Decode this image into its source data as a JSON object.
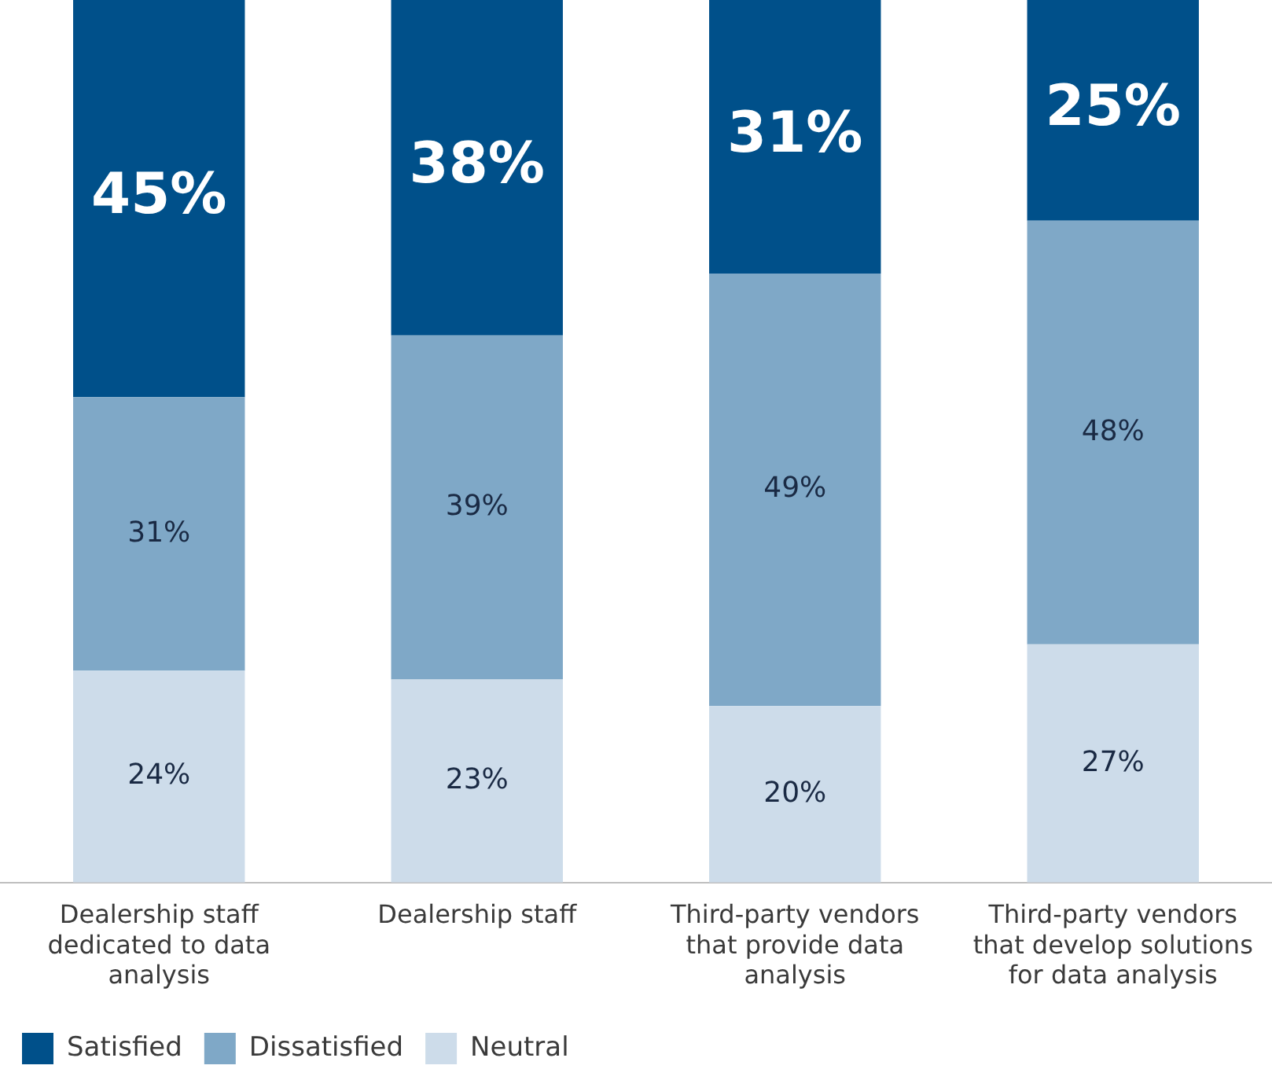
{
  "chart_data": {
    "type": "bar",
    "stacked": true,
    "ylim": [
      0,
      100
    ],
    "tick_labels": false,
    "legend": "bottom left",
    "categories": [
      "Dealership staff dedicated to data analysis",
      "Dealership staff",
      "Third-party vendors that provide data analysis",
      "Third-party vendors that develop solutions for data analysis"
    ],
    "series": [
      {
        "name": "Neutral",
        "color": "#cddcea",
        "values": [
          24,
          23,
          20,
          27
        ],
        "value_labels": [
          "24%",
          "23%",
          "20%",
          "27%"
        ]
      },
      {
        "name": "Dissatisfied",
        "color": "#7fa8c7",
        "values": [
          31,
          39,
          49,
          48
        ],
        "value_labels": [
          "31%",
          "39%",
          "49%",
          "48%"
        ]
      },
      {
        "name": "Satisfied",
        "color": "#00508a",
        "values": [
          45,
          38,
          31,
          25
        ],
        "value_labels": [
          "45%",
          "38%",
          "31%",
          "25%"
        ]
      }
    ]
  }
}
